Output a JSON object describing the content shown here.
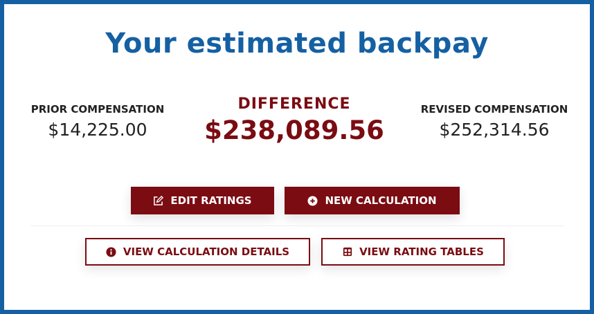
{
  "title": "Your estimated backpay",
  "prior": {
    "label": "PRIOR COMPENSATION",
    "value": "$14,225.00"
  },
  "difference": {
    "label": "DIFFERENCE",
    "value": "$238,089.56"
  },
  "revised": {
    "label": "REVISED COMPENSATION",
    "value": "$252,314.56"
  },
  "buttons": {
    "edit": {
      "label": "EDIT RATINGS",
      "icon": "edit-icon"
    },
    "new": {
      "label": "NEW CALCULATION",
      "icon": "plus-circle-icon"
    },
    "details": {
      "label": "VIEW CALCULATION DETAILS",
      "icon": "info-circle-icon"
    },
    "tables": {
      "label": "VIEW RATING TABLES",
      "icon": "table-icon"
    }
  },
  "colors": {
    "primary": "#1560a3",
    "accent": "#7a0c12"
  }
}
